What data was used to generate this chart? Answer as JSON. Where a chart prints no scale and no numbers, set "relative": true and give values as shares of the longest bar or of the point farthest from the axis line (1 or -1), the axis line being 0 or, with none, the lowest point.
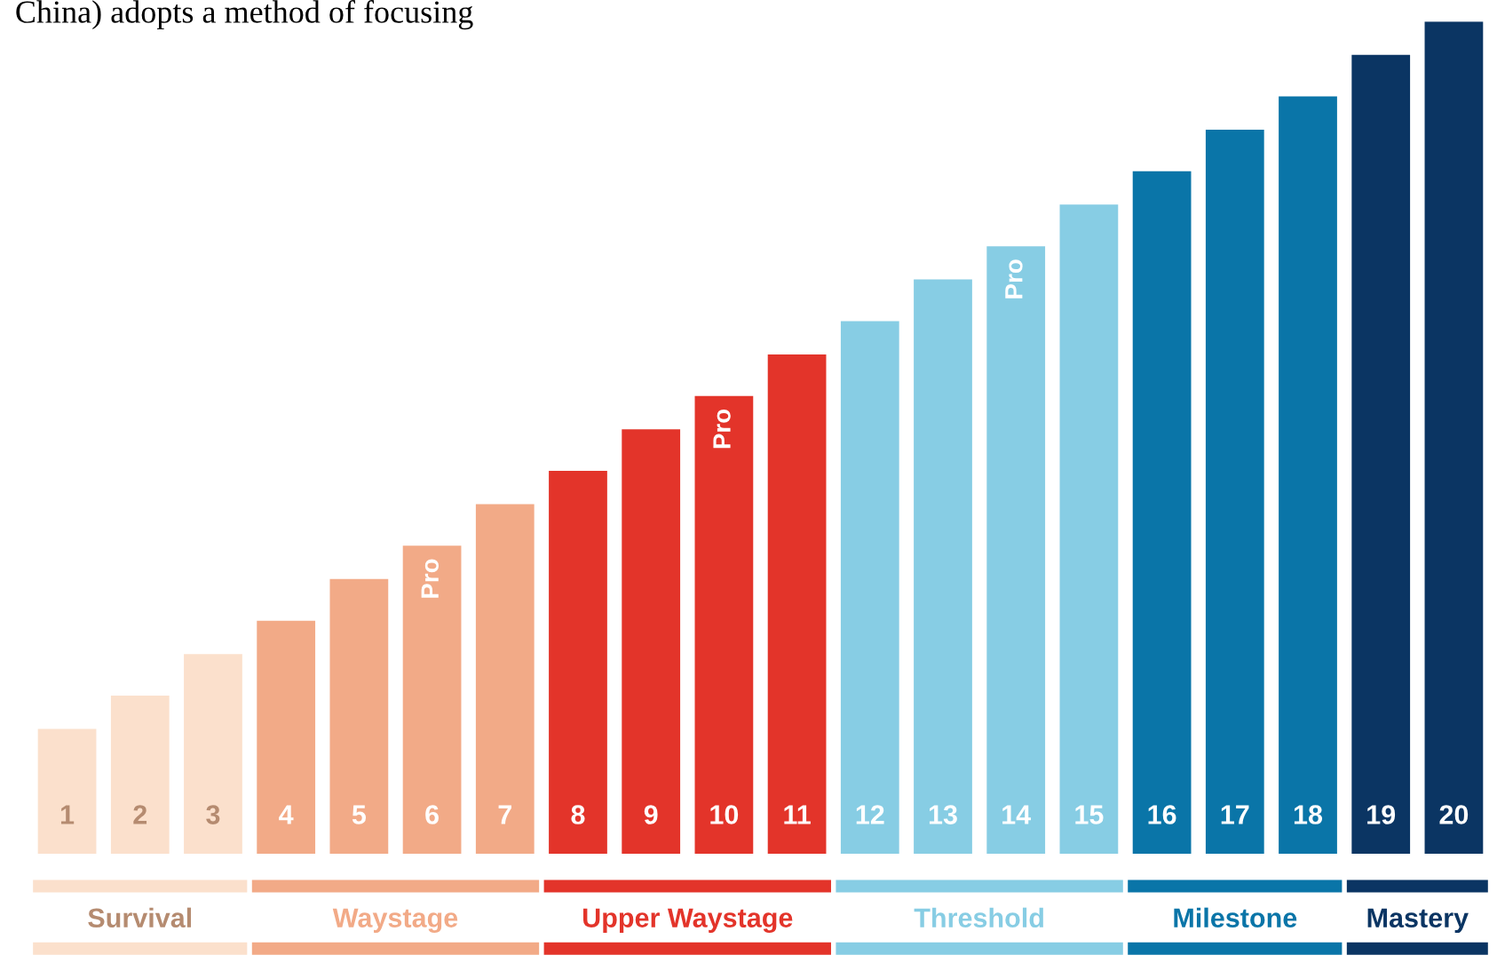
{
  "chart_data": {
    "type": "bar",
    "relative": true,
    "categories": [
      "1",
      "2",
      "3",
      "4",
      "5",
      "6",
      "7",
      "8",
      "9",
      "10",
      "11",
      "12",
      "13",
      "14",
      "15",
      "16",
      "17",
      "18",
      "19",
      "20"
    ],
    "values": [
      0.15,
      0.19,
      0.24,
      0.28,
      0.33,
      0.37,
      0.42,
      0.46,
      0.51,
      0.55,
      0.6,
      0.64,
      0.69,
      0.73,
      0.78,
      0.82,
      0.87,
      0.91,
      0.96,
      1
    ],
    "colors": [
      "#fbe0cc",
      "#fbe0cc",
      "#fbe0cc",
      "#f2aa87",
      "#f2aa87",
      "#f2aa87",
      "#f2aa87",
      "#e3342a",
      "#e3342a",
      "#e3342a",
      "#e3342a",
      "#87cde4",
      "#87cde4",
      "#87cde4",
      "#87cde4",
      "#0a75a8",
      "#0a75a8",
      "#0a75a8",
      "#0b3563",
      "#0b3563"
    ],
    "annotations": [
      "China) adopts a method of focusing",
      "Survival",
      "Waystage",
      "Upper Waystage",
      "Threshold",
      "Milestone",
      "Mastery",
      {
        "text": "Pro",
        "x": "6",
        "y": 0.37
      },
      {
        "text": "Pro",
        "x": "10",
        "y": 0.55
      },
      {
        "text": "Pro",
        "x": "14",
        "y": 0.73
      }
    ],
    "grid": false,
    "legend": false
  }
}
